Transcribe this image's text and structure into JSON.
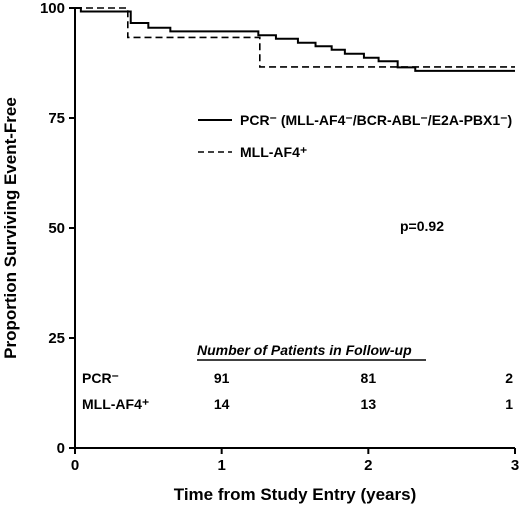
{
  "chart_data": {
    "type": "line",
    "title": "",
    "xlabel": "Time from Study Entry (years)",
    "ylabel": "Proportion Surviving Event-Free",
    "xlim": [
      0,
      3
    ],
    "ylim": [
      0,
      100
    ],
    "xticks": [
      "0",
      "1",
      "2",
      "3"
    ],
    "yticks": [
      "0",
      "25",
      "50",
      "75",
      "100"
    ],
    "grid": false,
    "legend_position": "top-right",
    "series": [
      {
        "name": "PCR⁻ (MLL-AF4⁻/BCR-ABL⁻/E2A-PBX1⁻)",
        "style": "solid",
        "steps": [
          [
            0,
            100
          ],
          [
            0.04,
            99.2
          ],
          [
            0.34,
            99.2
          ],
          [
            0.38,
            96.6
          ],
          [
            0.45,
            96.6
          ],
          [
            0.5,
            95.5
          ],
          [
            0.62,
            95.5
          ],
          [
            0.65,
            94.7
          ],
          [
            1.22,
            94.7
          ],
          [
            1.25,
            93.8
          ],
          [
            1.35,
            93.8
          ],
          [
            1.37,
            93.0
          ],
          [
            1.5,
            93.0
          ],
          [
            1.52,
            92.1
          ],
          [
            1.62,
            92.1
          ],
          [
            1.64,
            91.3
          ],
          [
            1.73,
            91.3
          ],
          [
            1.75,
            90.5
          ],
          [
            1.82,
            90.5
          ],
          [
            1.84,
            89.6
          ],
          [
            1.95,
            89.6
          ],
          [
            1.97,
            88.7
          ],
          [
            2.05,
            88.7
          ],
          [
            2.07,
            87.9
          ],
          [
            2.17,
            87.9
          ],
          [
            2.2,
            86.5
          ],
          [
            2.3,
            86.5
          ],
          [
            2.32,
            85.7
          ],
          [
            3.0,
            85.7
          ]
        ]
      },
      {
        "name": "MLL-AF4⁺",
        "style": "dashed",
        "steps": [
          [
            0,
            100
          ],
          [
            0.36,
            100
          ],
          [
            0.36,
            93.3
          ],
          [
            1.26,
            93.3
          ],
          [
            1.26,
            86.6
          ],
          [
            3.0,
            86.6
          ]
        ]
      }
    ],
    "annotation": "p=0.92",
    "table": {
      "title": "Number of Patients in Follow-up",
      "rows": [
        {
          "label": "PCR⁻",
          "values": [
            "91",
            "81",
            "2"
          ]
        },
        {
          "label": "MLL-AF4⁺",
          "values": [
            "14",
            "13",
            "1"
          ]
        }
      ]
    }
  }
}
